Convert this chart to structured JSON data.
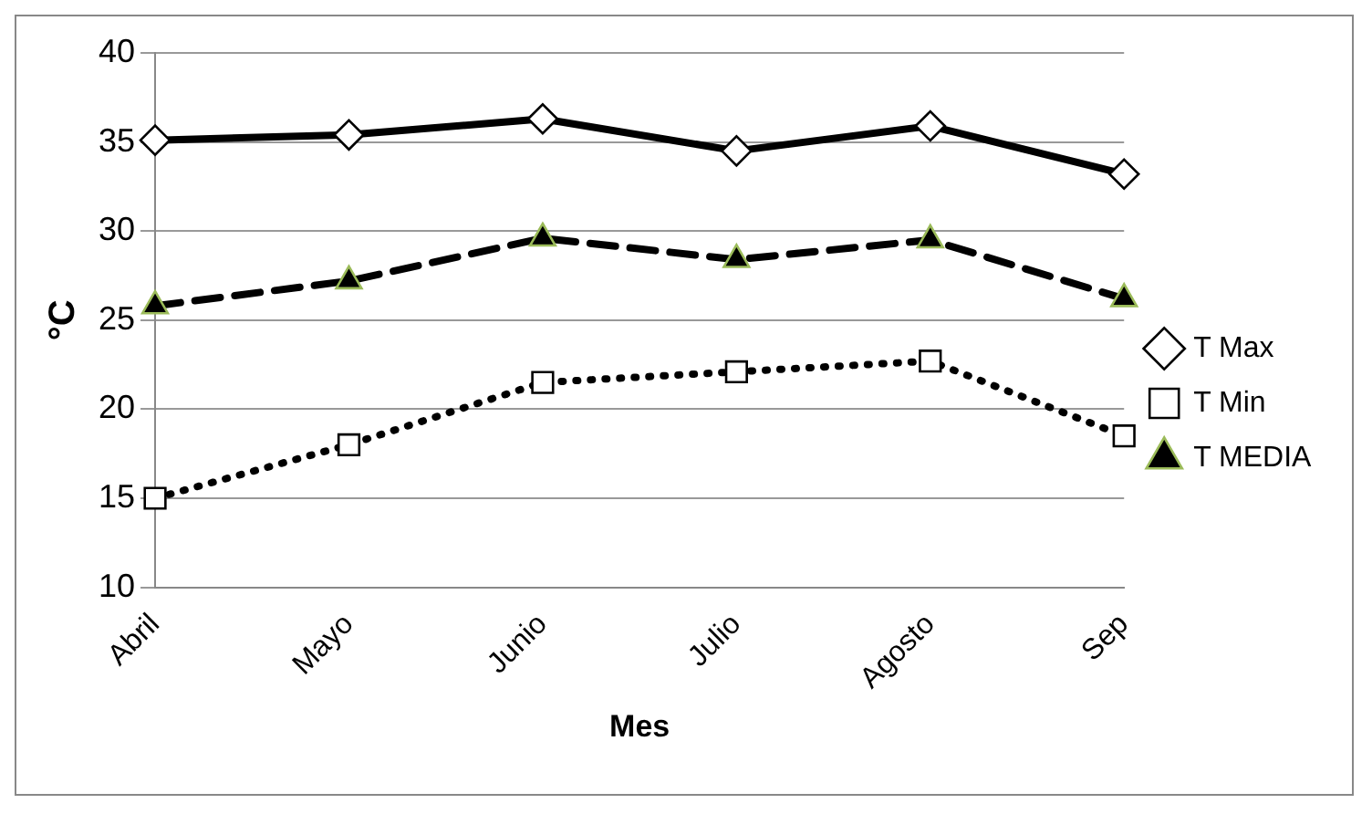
{
  "chart_data": {
    "type": "line",
    "xlabel": "Mes",
    "ylabel": "°C",
    "categories": [
      "Abril",
      "Mayo",
      "Junio",
      "Julio",
      "Agosto",
      "Sep"
    ],
    "series": [
      {
        "name": "T Max",
        "color": "#000000",
        "marker": "diamond",
        "line_style": "solid",
        "values": [
          35.1,
          35.4,
          36.3,
          34.5,
          35.9,
          33.2
        ]
      },
      {
        "name": "T Min",
        "color": "#000000",
        "marker": "square",
        "line_style": "dotted",
        "values": [
          15.0,
          18.0,
          21.5,
          22.1,
          22.7,
          18.5
        ]
      },
      {
        "name": "T MEDIA",
        "color": "#000000",
        "marker": "triangle",
        "line_style": "dashed",
        "values": [
          25.8,
          27.2,
          29.6,
          28.4,
          29.5,
          26.2
        ]
      }
    ],
    "ylim": [
      10,
      40
    ],
    "yticks": [
      10,
      15,
      20,
      25,
      30,
      35,
      40
    ],
    "grid": "y",
    "legend": "right"
  }
}
